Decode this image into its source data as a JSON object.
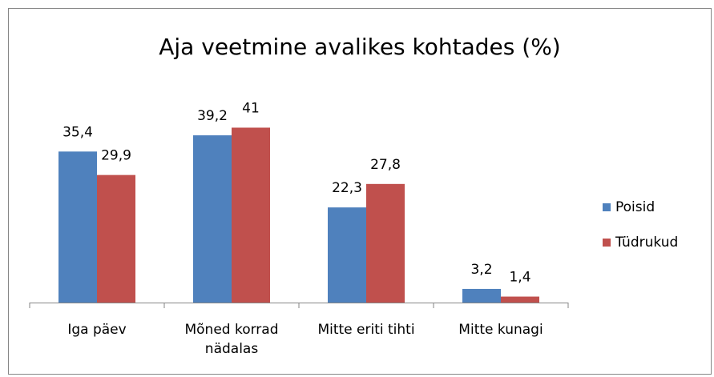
{
  "chart_data": {
    "type": "bar",
    "title": "Aja veetmine avalikes kohtades (%)",
    "categories": [
      "Iga päev",
      "Mõned korrad nädalas",
      "Mitte eriti tihti",
      "Mitte kunagi"
    ],
    "series": [
      {
        "name": "Poisid",
        "color": "#4f81bd",
        "values": [
          35.4,
          39.2,
          22.3,
          3.2
        ],
        "value_labels": [
          "35,4",
          "39,2",
          "22,3",
          "3,2"
        ]
      },
      {
        "name": "Tüdrukud",
        "color": "#c0504d",
        "values": [
          29.9,
          41,
          27.8,
          1.4
        ],
        "value_labels": [
          "29,9",
          "41",
          "27,8",
          "1,4"
        ]
      }
    ],
    "legend": "right"
  }
}
